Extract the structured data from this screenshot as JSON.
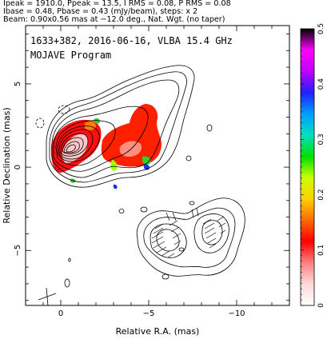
{
  "header": {
    "line1": "Ipeak = 1910.0, Ppeak = 13.5, I RMS = 0.08, P RMS = 0.08",
    "line2": "Ibase = 0.48, Pbase = 0.43 (mJy/beam), steps: x 2",
    "line3": "Beam: 0.90x0.56 mas at −12.0 deg., Nat. Wgt. (no taper)"
  },
  "chart_data": {
    "type": "heatmap",
    "title": "1633+382, 2016-06-16, VLBA 15.4 GHz",
    "subtitle": "MOJAVE Program",
    "xlabel": "Relative R.A. (mas)",
    "ylabel": "Relative Declination (mas)",
    "xlim": [
      2,
      -13
    ],
    "ylim": [
      -8.3,
      8.5
    ],
    "x_ticks": [
      0,
      -5,
      -10
    ],
    "x_tick_labels": [
      "0",
      "−5",
      "−10"
    ],
    "y_ticks": [
      5,
      0,
      -5
    ],
    "y_tick_labels": [
      "5",
      "0",
      "−5"
    ],
    "colorbar": {
      "range": [
        0,
        0.5
      ],
      "ticks": [
        0,
        0.1,
        0.2,
        0.3,
        0.4,
        0.5
      ],
      "tick_labels": [
        "0",
        "0.1",
        "0.2",
        "0.3",
        "0.4",
        "0.5"
      ],
      "colors": [
        "#ffffff",
        "#ffd8d8",
        "#ff8080",
        "#ff0000",
        "#ff6a00",
        "#ffd000",
        "#c8ff00",
        "#00e000",
        "#00e0c0",
        "#00a0ff",
        "#2020ff",
        "#c000ff",
        "#ff00ff",
        "#000000"
      ]
    },
    "peak_intensity_mJy_per_beam": 1910.0,
    "peak_polarization_mJy_per_beam": 13.5,
    "contour_base_mJy_per_beam": 0.48,
    "contour_step_factor": 2,
    "beam": {
      "major_mas": 0.9,
      "minor_mas": 0.56,
      "pa_deg": -12.0
    },
    "core_position_mas": [
      0,
      0
    ],
    "jet_direction": "north-west",
    "secondary_emission_region": {
      "ra_mas": -8,
      "dec_mas": -4.5
    }
  }
}
